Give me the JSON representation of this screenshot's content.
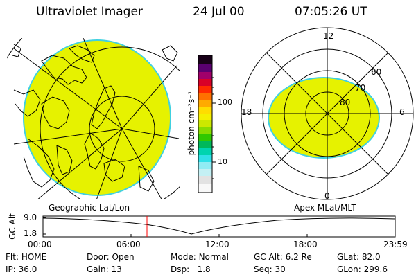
{
  "header": {
    "title": "Ultraviolet Imager",
    "date": "24 Jul 00",
    "time": "07:05:26 UT"
  },
  "colorbar": {
    "axis_label": "photon cm⁻²s⁻¹",
    "ticks": [
      "100",
      "10"
    ]
  },
  "polar": {
    "mlt_labels": [
      "12",
      "18",
      "6",
      "0"
    ],
    "lat_labels": [
      "60",
      "70",
      "80"
    ]
  },
  "panel_titles": {
    "left": "Geographic Lat/Lon",
    "right": "Apex MLat/MLT"
  },
  "altitude_plot": {
    "ylabel": "GC Alt",
    "yticks": [
      "9.0",
      "1.8"
    ],
    "xticks": [
      "00:00",
      "06:00",
      "12:00",
      "18:00",
      "23:59"
    ],
    "current_time": "07:05:26",
    "marker_color": "#ff0000"
  },
  "footer": {
    "row1": [
      {
        "label": "Flt:",
        "value": "HOME"
      },
      {
        "label": "Door:",
        "value": "Open"
      },
      {
        "label": "Mode:",
        "value": "Normal"
      },
      {
        "label": "GC Alt:",
        "value": "6.2 Re"
      },
      {
        "label": "GLat:",
        "value": "82.0"
      }
    ],
    "row2": [
      {
        "label": "IP:",
        "value": "36.0"
      },
      {
        "label": "Gain:",
        "value": "13"
      },
      {
        "label": "Dsp:",
        "value": "1.8"
      },
      {
        "label": "Seq:",
        "value": "30"
      },
      {
        "label": "GLon:",
        "value": "299.6"
      }
    ]
  },
  "colors": {
    "image_fill": "#e6f200",
    "image_edge": "#40d0e0"
  }
}
